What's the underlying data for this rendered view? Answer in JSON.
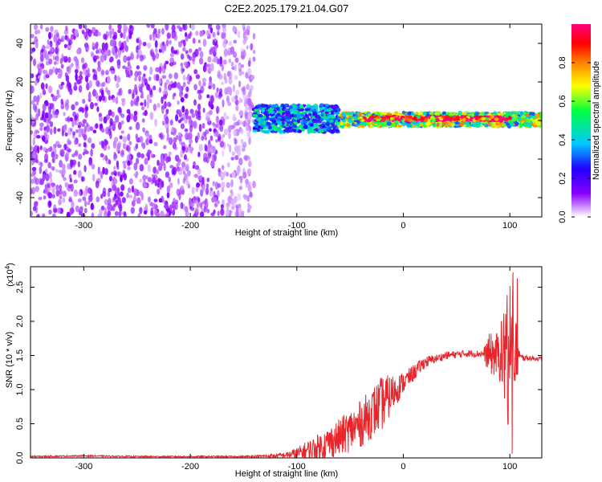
{
  "title": "C2E2.2025.179.21.04.G07",
  "chart_data": [
    {
      "type": "heatmap",
      "xlabel": "Height of straight line (km)",
      "ylabel": "Frequency (Hz)",
      "xlim": [
        -350,
        130
      ],
      "ylim": [
        -50,
        50
      ],
      "xticks": [
        -300,
        -200,
        -100,
        0,
        100
      ],
      "yticks": [
        -40,
        -20,
        0,
        20,
        40
      ],
      "colorbar": {
        "label": "Normalized spectral amplitude",
        "range": [
          0,
          1
        ],
        "ticks": [
          0.0,
          0.2,
          0.4,
          0.6,
          0.8
        ],
        "colors": [
          "#ffffff",
          "#8a00ff",
          "#2000ff",
          "#00c8ff",
          "#00ff40",
          "#ffff00",
          "#ff8000",
          "#ff0000",
          "#ff0080"
        ]
      },
      "regions": [
        {
          "x_range": [
            -350,
            -140
          ],
          "freq_range": [
            -50,
            50
          ],
          "amplitude": 0.1
        },
        {
          "x_range": [
            -140,
            -60
          ],
          "freq_range": [
            -6,
            8
          ],
          "amplitude": 0.35
        },
        {
          "x_range": [
            -60,
            130
          ],
          "freq_range": [
            -3,
            4
          ],
          "amplitude": 0.55
        },
        {
          "x_range": [
            -40,
            100
          ],
          "freq_range": [
            0,
            2
          ],
          "amplitude": 0.9
        }
      ]
    },
    {
      "type": "line",
      "xlabel": "Height of straight line (km)",
      "ylabel": "SNR (10 * v/v)",
      "scale_note": "(x10",
      "scale_exp": "4",
      "xlim": [
        -350,
        130
      ],
      "ylim": [
        0,
        2.8
      ],
      "xticks": [
        -300,
        -200,
        -100,
        0,
        100
      ],
      "yticks": [
        0.0,
        0.5,
        1.0,
        1.5,
        2.0,
        2.5
      ],
      "series": [
        {
          "color": "#e8252a",
          "baseline": [
            [
              -350,
              0.02
            ],
            [
              -300,
              0.03
            ],
            [
              -250,
              0.02
            ],
            [
              -200,
              0.02
            ],
            [
              -150,
              0.02
            ],
            [
              -120,
              0.03
            ],
            [
              -100,
              0.06
            ],
            [
              -80,
              0.15
            ],
            [
              -60,
              0.3
            ],
            [
              -40,
              0.5
            ],
            [
              -20,
              0.8
            ],
            [
              0,
              1.1
            ],
            [
              20,
              1.4
            ],
            [
              40,
              1.5
            ],
            [
              60,
              1.53
            ],
            [
              80,
              1.52
            ],
            [
              95,
              1.5
            ],
            [
              110,
              1.47
            ],
            [
              130,
              1.45
            ]
          ],
          "noise": [
            [
              -350,
              0.01
            ],
            [
              -150,
              0.01
            ],
            [
              -110,
              0.04
            ],
            [
              -80,
              0.2
            ],
            [
              -40,
              0.35
            ],
            [
              -20,
              0.4
            ],
            [
              0,
              0.15
            ],
            [
              30,
              0.06
            ],
            [
              75,
              0.05
            ],
            [
              80,
              0.3
            ],
            [
              90,
              0.35
            ],
            [
              100,
              1.2
            ],
            [
              105,
              0.6
            ],
            [
              110,
              0.05
            ],
            [
              130,
              0.03
            ]
          ]
        }
      ]
    }
  ]
}
